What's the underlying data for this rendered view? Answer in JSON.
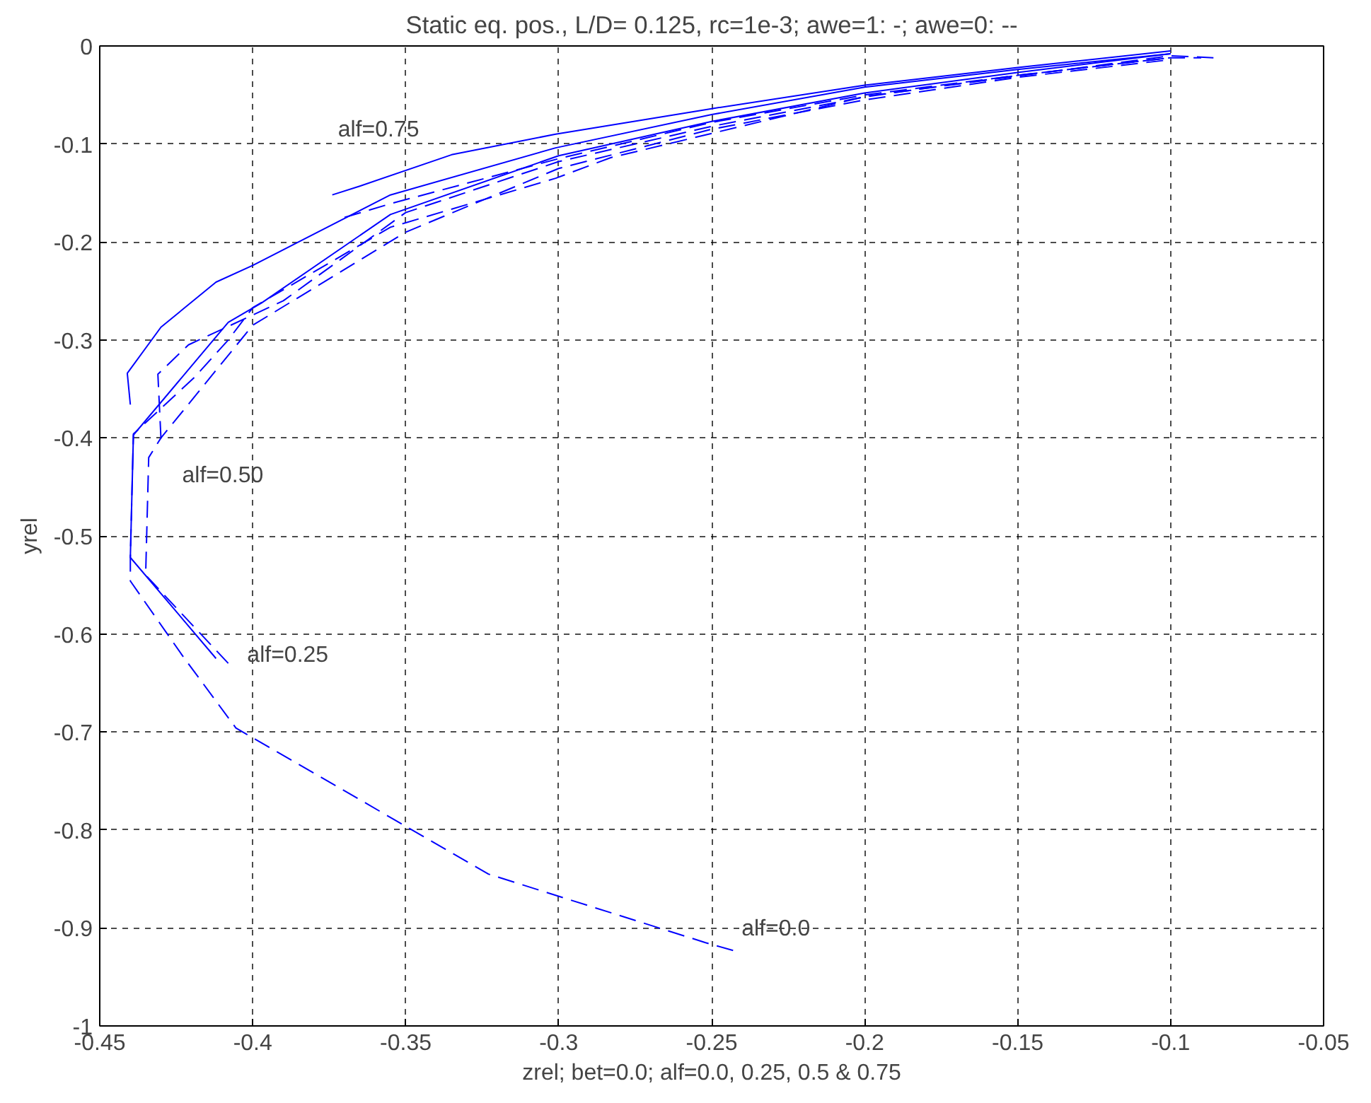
{
  "chart_data": {
    "type": "line",
    "title": "Static eq. pos., L/D= 0.125, rc=1e-3; awe=1: -; awe=0: --",
    "xlabel": "zrel; bet=0.0; alf=0.0, 0.25, 0.5 & 0.75",
    "ylabel": "yrel",
    "xlim": [
      -0.45,
      -0.05
    ],
    "ylim": [
      -1,
      0
    ],
    "xticks": [
      -0.45,
      -0.4,
      -0.35,
      -0.3,
      -0.25,
      -0.2,
      -0.15,
      -0.1,
      -0.05
    ],
    "yticks": [
      -1,
      -0.9,
      -0.8,
      -0.7,
      -0.6,
      -0.5,
      -0.4,
      -0.3,
      -0.2,
      -0.1,
      0
    ],
    "grid": true,
    "marker": "none",
    "series": [
      {
        "color": "#0000ff",
        "line_style": "solid",
        "x": [
          -0.374,
          -0.365,
          -0.335,
          -0.301,
          -0.25,
          -0.2,
          -0.15,
          -0.1
        ],
        "values": [
          -0.152,
          -0.143,
          -0.111,
          -0.09,
          -0.064,
          -0.04,
          -0.022,
          -0.005
        ]
      },
      {
        "color": "#0000ff",
        "line_style": "dashed",
        "x": [
          -0.37,
          -0.355,
          -0.3,
          -0.25,
          -0.2,
          -0.15,
          -0.1,
          -0.09
        ],
        "values": [
          -0.175,
          -0.161,
          -0.115,
          -0.078,
          -0.05,
          -0.03,
          -0.012,
          -0.012
        ]
      },
      {
        "color": "#0000ff",
        "line_style": "solid",
        "x": [
          -0.44,
          -0.441,
          -0.43,
          -0.412,
          -0.4,
          -0.355,
          -0.301,
          -0.25,
          -0.2,
          -0.15,
          -0.1
        ],
        "values": [
          -0.366,
          -0.334,
          -0.287,
          -0.241,
          -0.224,
          -0.152,
          -0.104,
          -0.07,
          -0.042,
          -0.024,
          -0.008
        ]
      },
      {
        "color": "#0000ff",
        "line_style": "dashed",
        "x": [
          -0.43,
          -0.431,
          -0.421,
          -0.39,
          -0.35,
          -0.3,
          -0.25,
          -0.2,
          -0.15,
          -0.1
        ],
        "values": [
          -0.4,
          -0.335,
          -0.305,
          -0.26,
          -0.17,
          -0.118,
          -0.082,
          -0.052,
          -0.03,
          -0.012
        ]
      },
      {
        "color": "#0000ff",
        "line_style": "solid",
        "x": [
          -0.412,
          -0.44,
          -0.439,
          -0.408,
          -0.397,
          -0.355,
          -0.3,
          -0.25,
          -0.2,
          -0.15,
          -0.1
        ],
        "values": [
          -0.625,
          -0.522,
          -0.397,
          -0.282,
          -0.262,
          -0.172,
          -0.112,
          -0.077,
          -0.048,
          -0.027,
          -0.008
        ]
      },
      {
        "color": "#0000ff",
        "line_style": "dashed",
        "x": [
          -0.408,
          -0.435,
          -0.434,
          -0.43,
          -0.4,
          -0.35,
          -0.3,
          -0.25,
          -0.2,
          -0.15,
          -0.1
        ],
        "values": [
          -0.63,
          -0.54,
          -0.42,
          -0.4,
          -0.285,
          -0.19,
          -0.125,
          -0.085,
          -0.055,
          -0.032,
          -0.014
        ]
      },
      {
        "color": "#0000ff",
        "line_style": "dashed",
        "x": [
          -0.243,
          -0.252,
          -0.323,
          -0.354,
          -0.4055,
          -0.423,
          -0.44,
          -0.44,
          -0.439,
          -0.419,
          -0.408,
          -0.4,
          -0.355,
          -0.301,
          -0.283,
          -0.199,
          -0.1,
          -0.086
        ],
        "values": [
          -0.923,
          -0.915,
          -0.845,
          -0.789,
          -0.696,
          -0.622,
          -0.546,
          -0.522,
          -0.396,
          -0.338,
          -0.3,
          -0.267,
          -0.185,
          -0.135,
          -0.114,
          -0.051,
          -0.01,
          -0.012
        ]
      }
    ],
    "annotations": [
      {
        "text": "alf=0.75",
        "x": -0.374,
        "y": -0.152
      },
      {
        "text": "alf=0.50",
        "x": -0.43,
        "y": -0.4
      },
      {
        "text": "alf=0.25",
        "x": -0.412,
        "y": -0.625
      },
      {
        "text": "alf=0.0",
        "x": -0.243,
        "y": -0.923
      }
    ]
  }
}
